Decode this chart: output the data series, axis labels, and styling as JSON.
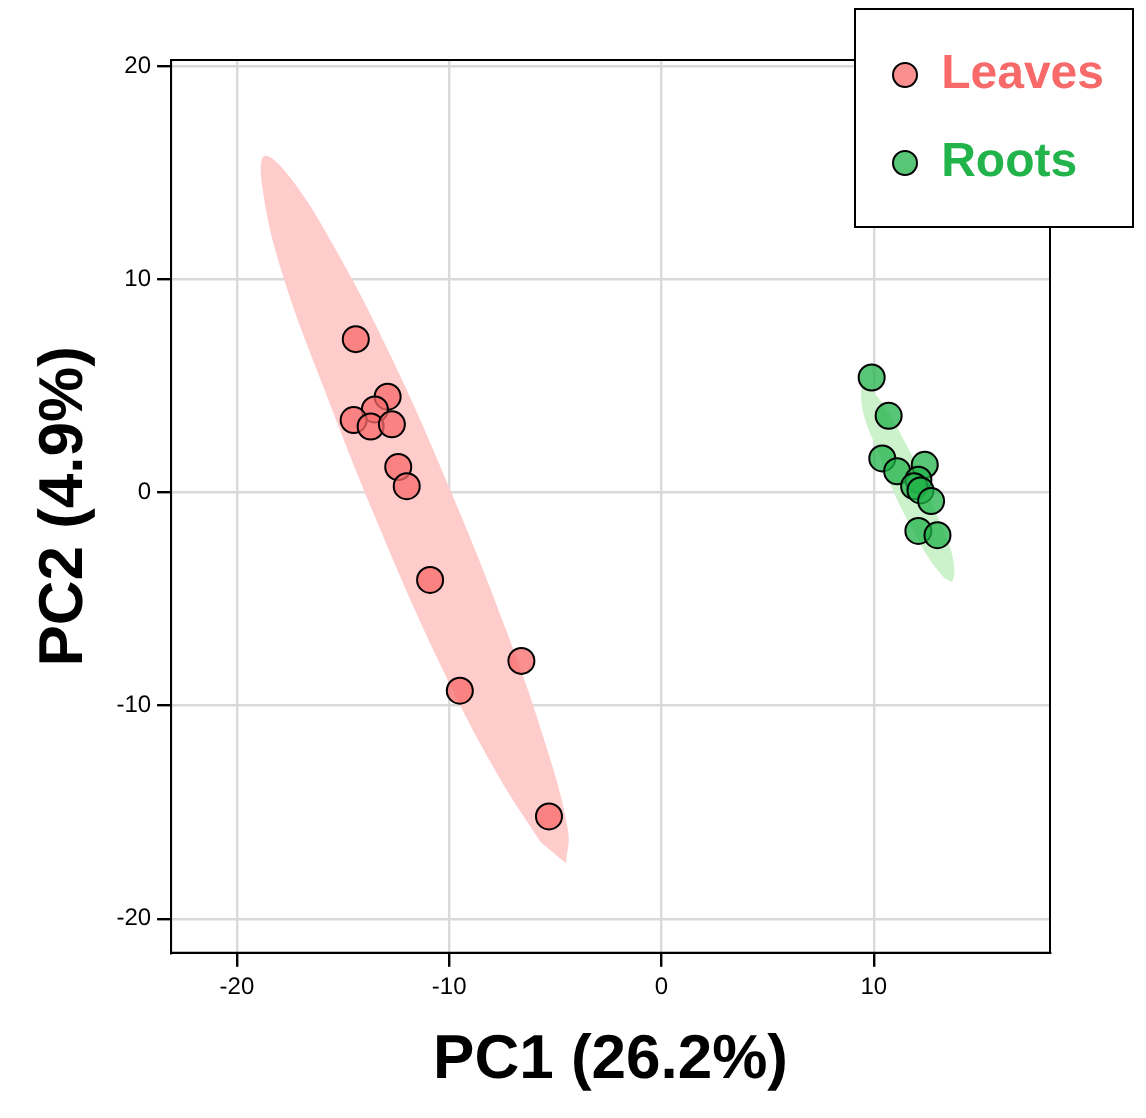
{
  "chart_data": {
    "type": "scatter",
    "xlabel": "PC1 (26.2%)",
    "ylabel": "PC2 (4.9%)",
    "xlim": [
      -23.1,
      18.3
    ],
    "ylim": [
      -21.6,
      20.3
    ],
    "xticks": [
      -20,
      -10,
      0,
      10
    ],
    "yticks": [
      -20,
      -10,
      0,
      10,
      20
    ],
    "grid": true,
    "legend": "top right",
    "marker": "circle",
    "series": [
      {
        "type": "area",
        "marker": "none",
        "color": "#ffcccc",
        "x": [
          -4.5,
          -4.4,
          -5.4,
          -7.3,
          -9.9,
          -12.7,
          -15.4,
          -17.5,
          -18.7,
          -18.8,
          -17.9,
          -15.9,
          -13.3,
          -10.5,
          -7.8,
          -5.7
        ],
        "values": [
          -17.4,
          -15.9,
          -12.0,
          -6.5,
          0.0,
          6.3,
          11.5,
          14.8,
          15.8,
          14.3,
          10.4,
          4.9,
          -1.6,
          -7.9,
          -13.1,
          -16.4
        ]
      },
      {
        "type": "area",
        "marker": "none",
        "color": "#ccf2cc",
        "x": [
          13.7,
          13.8,
          13.6,
          13.0,
          12.3,
          11.4,
          10.6,
          9.9,
          9.5,
          9.4,
          9.6,
          10.2,
          10.9,
          11.8,
          12.6,
          13.3
        ],
        "values": [
          -4.2,
          -3.7,
          -2.6,
          -1.1,
          0.7,
          2.5,
          3.9,
          4.8,
          5.0,
          4.5,
          3.4,
          1.9,
          0.1,
          -1.7,
          -3.1,
          -4.0
        ]
      },
      {
        "name": "Leaves",
        "color": "#f86a6a",
        "x": [
          -14.4,
          -12.9,
          -13.5,
          -14.5,
          -13.7,
          -12.7,
          -12.4,
          -12.0,
          -10.9,
          -6.6,
          -9.5,
          -5.3
        ],
        "values": [
          7.2,
          4.5,
          3.9,
          3.4,
          3.1,
          3.2,
          1.2,
          0.3,
          -4.1,
          -7.9,
          -9.3,
          -15.2
        ]
      },
      {
        "name": "Roots",
        "color": "#22b34a",
        "x": [
          9.9,
          10.7,
          10.4,
          11.1,
          12.4,
          12.1,
          11.9,
          12.2,
          12.7,
          12.1,
          13.0
        ],
        "values": [
          5.4,
          3.6,
          1.6,
          1.0,
          1.3,
          0.6,
          0.3,
          0.1,
          -0.4,
          -1.8,
          -2.0
        ]
      }
    ]
  }
}
